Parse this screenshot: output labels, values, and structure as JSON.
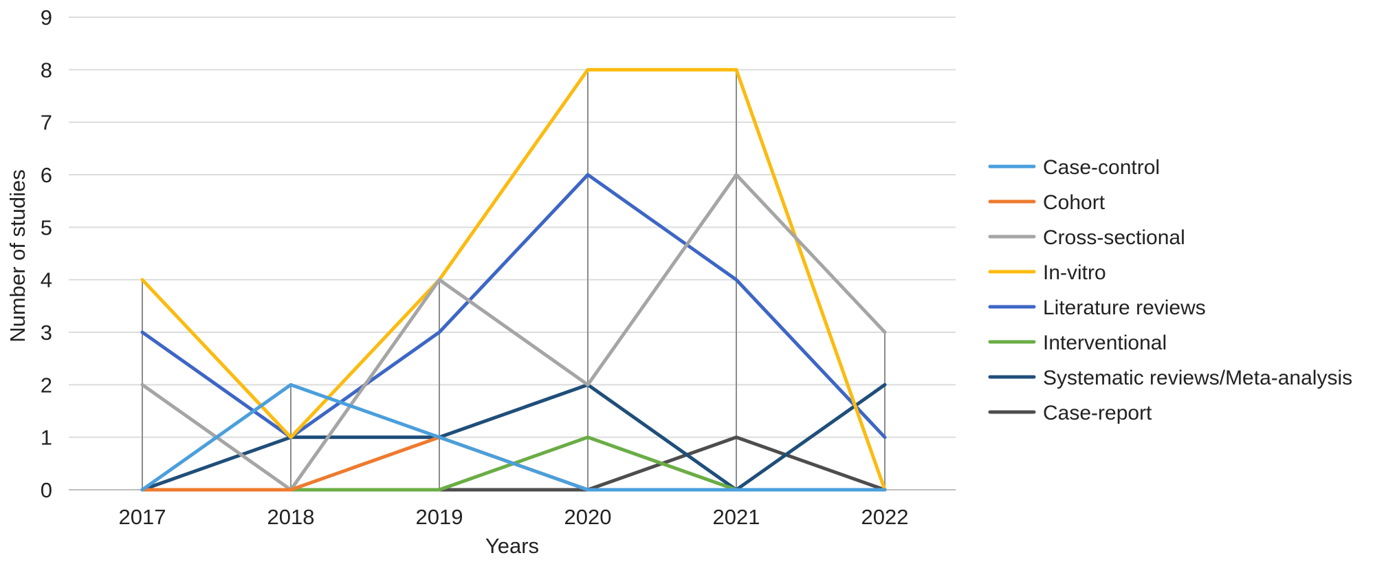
{
  "chart_data": {
    "type": "line",
    "title": "",
    "xlabel": "Years",
    "ylabel": "Number of studies",
    "categories": [
      "2017",
      "2018",
      "2019",
      "2020",
      "2021",
      "2022"
    ],
    "ylim": [
      0,
      9
    ],
    "yticks": [
      0,
      1,
      2,
      3,
      4,
      5,
      6,
      7,
      8,
      9
    ],
    "grid": "horizontal",
    "legend_position": "right",
    "series": [
      {
        "name": "Case-control",
        "color": "#4a9fdc",
        "values": [
          0,
          2,
          1,
          0,
          0,
          0
        ]
      },
      {
        "name": "Cohort",
        "color": "#ee7a2e",
        "values": [
          0,
          0,
          1,
          0,
          0,
          0
        ]
      },
      {
        "name": "Cross-sectional",
        "color": "#a5a5a5",
        "values": [
          2,
          0,
          4,
          2,
          6,
          3
        ]
      },
      {
        "name": "In-vitro",
        "color": "#fbbb10",
        "values": [
          4,
          1,
          4,
          8,
          8,
          0
        ]
      },
      {
        "name": "Literature reviews",
        "color": "#3d66c5",
        "values": [
          3,
          1,
          3,
          6,
          4,
          1
        ]
      },
      {
        "name": "Interventional",
        "color": "#6aad45",
        "values": [
          0,
          0,
          0,
          1,
          0,
          0
        ]
      },
      {
        "name": "Systematic reviews/Meta-analysis",
        "color": "#1f4e79",
        "values": [
          0,
          1,
          1,
          2,
          0,
          2
        ]
      },
      {
        "name": "Case-report",
        "color": "#4d4d4d",
        "values": [
          0,
          0,
          0,
          0,
          1,
          0
        ]
      }
    ]
  }
}
